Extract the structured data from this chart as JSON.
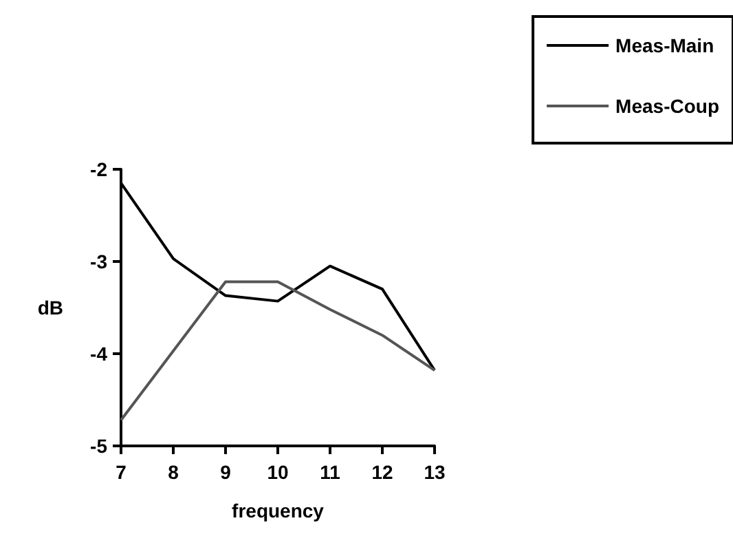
{
  "chart_data": {
    "type": "line",
    "xlabel": "frequency",
    "ylabel": "dB",
    "x": [
      7,
      8,
      9,
      10,
      11,
      12,
      13
    ],
    "series": [
      {
        "name": "Meas-Main",
        "color": "#000000",
        "values": [
          -2.15,
          -2.97,
          -3.37,
          -3.43,
          -3.05,
          -3.3,
          -4.18
        ]
      },
      {
        "name": "Meas-Coup",
        "color": "#555555",
        "values": [
          -4.72,
          -3.97,
          -3.22,
          -3.22,
          -3.52,
          -3.8,
          -4.18
        ]
      }
    ],
    "xlim": [
      7,
      13
    ],
    "xticks": [
      7,
      8,
      9,
      10,
      11,
      12,
      13
    ],
    "ylim": [
      -5,
      -2
    ],
    "yticks": [
      -5,
      -4,
      -3,
      -2
    ],
    "grid": false,
    "legend": "top right",
    "marker": "none",
    "line_style": "solid"
  }
}
